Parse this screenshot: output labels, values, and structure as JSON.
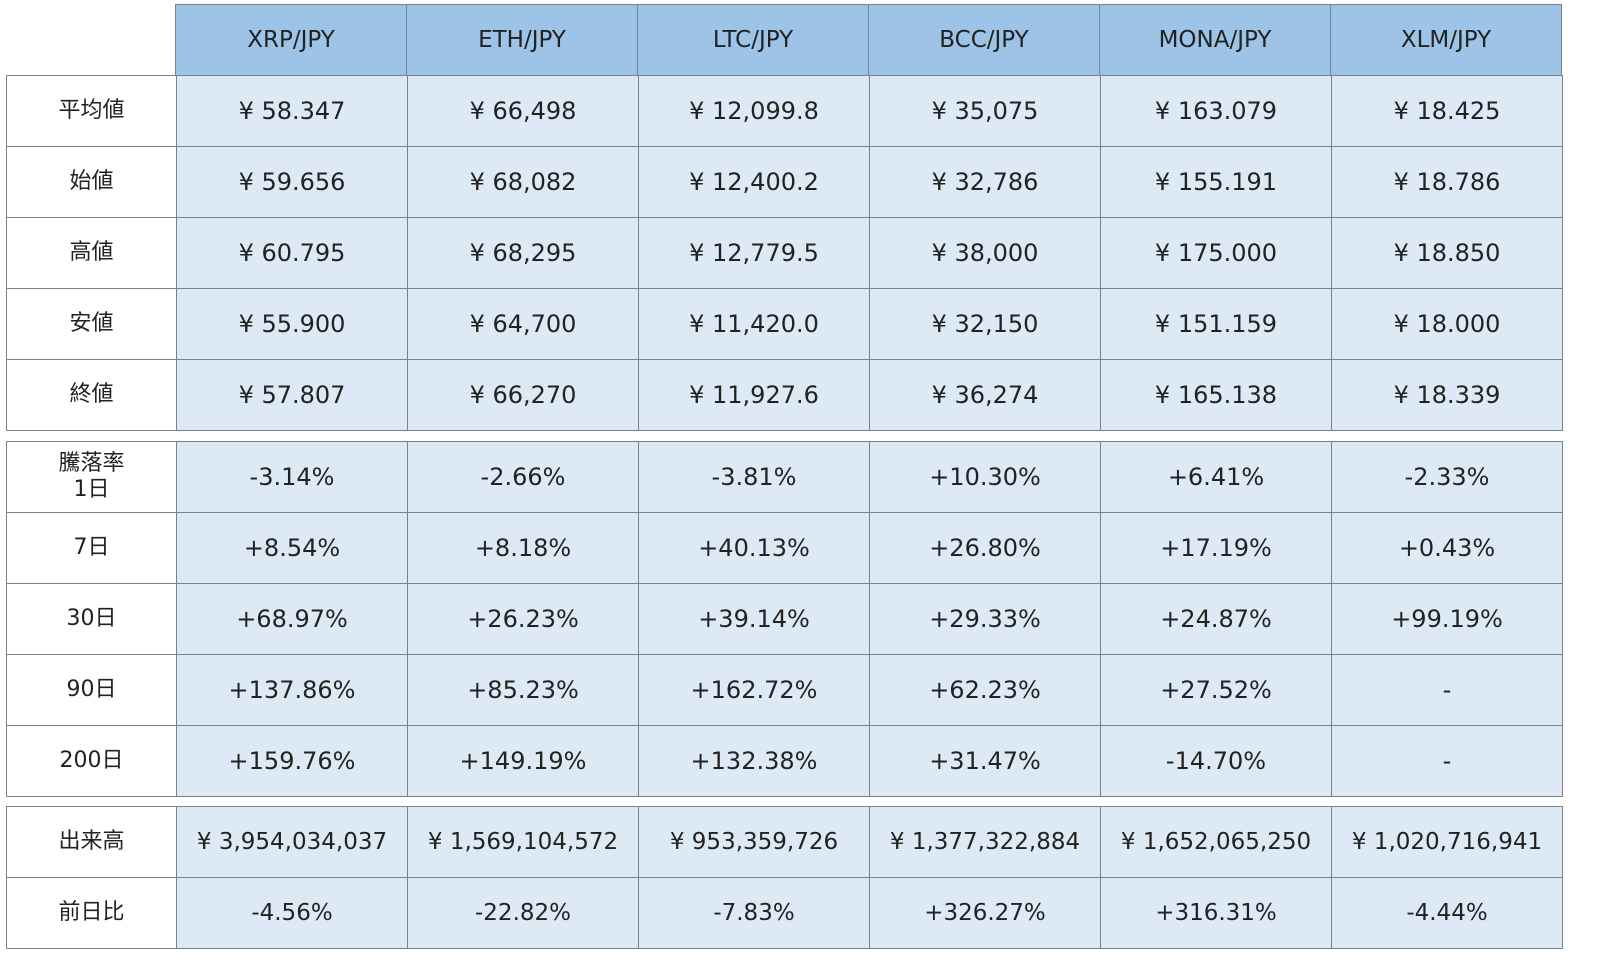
{
  "pairs": [
    "XRP/JPY",
    "ETH/JPY",
    "LTC/JPY",
    "BCC/JPY",
    "MONA/JPY",
    "XLM/JPY"
  ],
  "price_section": {
    "rows": [
      {
        "label": "平均値",
        "values": [
          "¥ 58.347",
          "¥ 66,498",
          "¥ 12,099.8",
          "¥ 35,075",
          "¥ 163.079",
          "¥ 18.425"
        ]
      },
      {
        "label": "始値",
        "values": [
          "¥ 59.656",
          "¥ 68,082",
          "¥ 12,400.2",
          "¥ 32,786",
          "¥ 155.191",
          "¥ 18.786"
        ]
      },
      {
        "label": "高値",
        "values": [
          "¥ 60.795",
          "¥ 68,295",
          "¥ 12,779.5",
          "¥ 38,000",
          "¥ 175.000",
          "¥ 18.850"
        ]
      },
      {
        "label": "安値",
        "values": [
          "¥ 55.900",
          "¥ 64,700",
          "¥ 11,420.0",
          "¥ 32,150",
          "¥ 151.159",
          "¥ 18.000"
        ]
      },
      {
        "label": "終値",
        "values": [
          "¥ 57.807",
          "¥ 66,270",
          "¥ 11,927.6",
          "¥ 36,274",
          "¥ 165.138",
          "¥ 18.339"
        ]
      }
    ]
  },
  "change_section": {
    "title": "騰落率",
    "rows": [
      {
        "label": "1日",
        "values": [
          "-3.14%",
          "-2.66%",
          "-3.81%",
          "+10.30%",
          "+6.41%",
          "-2.33%"
        ]
      },
      {
        "label": "7日",
        "values": [
          "+8.54%",
          "+8.18%",
          "+40.13%",
          "+26.80%",
          "+17.19%",
          "+0.43%"
        ]
      },
      {
        "label": "30日",
        "values": [
          "+68.97%",
          "+26.23%",
          "+39.14%",
          "+29.33%",
          "+24.87%",
          "+99.19%"
        ]
      },
      {
        "label": "90日",
        "values": [
          "+137.86%",
          "+85.23%",
          "+162.72%",
          "+62.23%",
          "+27.52%",
          "-"
        ]
      },
      {
        "label": "200日",
        "values": [
          "+159.76%",
          "+149.19%",
          "+132.38%",
          "+31.47%",
          "-14.70%",
          "-"
        ]
      }
    ]
  },
  "volume_section": {
    "rows": [
      {
        "label": "出来高",
        "values": [
          "¥ 3,954,034,037",
          "¥ 1,569,104,572",
          "¥ 953,359,726",
          "¥ 1,377,322,884",
          "¥ 1,652,065,250",
          "¥ 1,020,716,941"
        ]
      },
      {
        "label": "前日比",
        "values": [
          "-4.56%",
          "-22.82%",
          "-7.83%",
          "+326.27%",
          "+316.31%",
          "-4.44%"
        ]
      }
    ]
  },
  "colors": {
    "header_bg": "#9dc3e6",
    "cell_bg": "#ddeaf6",
    "label_bg": "#ffffff",
    "border": "#7a828c"
  }
}
